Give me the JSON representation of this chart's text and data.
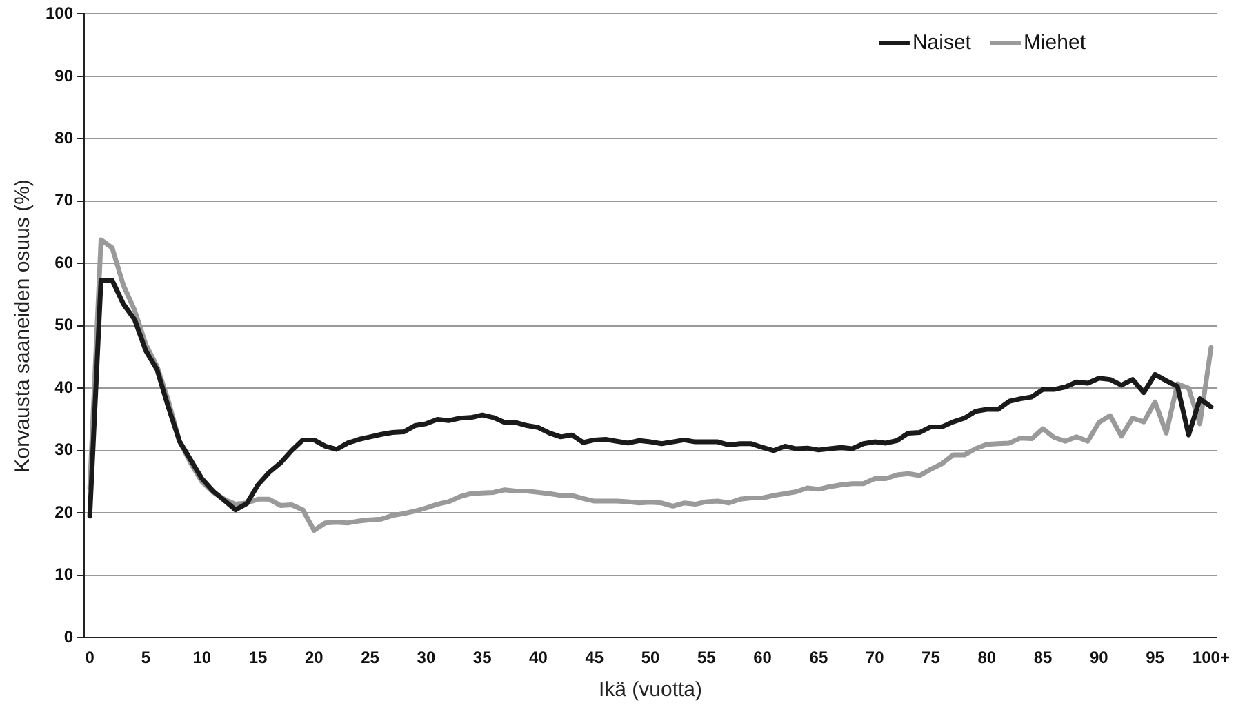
{
  "chart_data": {
    "type": "line",
    "xlabel": "Ikä (vuotta)",
    "ylabel": "Korvausta saaneiden osuus (%)",
    "categories": [
      "0",
      null,
      null,
      null,
      null,
      "5",
      null,
      null,
      null,
      null,
      "10",
      null,
      null,
      null,
      null,
      "15",
      null,
      null,
      null,
      null,
      "20",
      null,
      null,
      null,
      null,
      "25",
      null,
      null,
      null,
      null,
      "30",
      null,
      null,
      null,
      null,
      "35",
      null,
      null,
      null,
      null,
      "40",
      null,
      null,
      null,
      null,
      "45",
      null,
      null,
      null,
      null,
      "50",
      null,
      null,
      null,
      null,
      "55",
      null,
      null,
      null,
      null,
      "60",
      null,
      null,
      null,
      null,
      "65",
      null,
      null,
      null,
      null,
      "70",
      null,
      null,
      null,
      null,
      "75",
      null,
      null,
      null,
      null,
      "80",
      null,
      null,
      null,
      null,
      "85",
      null,
      null,
      null,
      null,
      "90",
      null,
      null,
      null,
      null,
      "95",
      null,
      null,
      null,
      null,
      "100+"
    ],
    "series": [
      {
        "name": "Naiset",
        "color": "#1a1a1a",
        "values": [
          19.5,
          57.3,
          57.3,
          53.5,
          51,
          46,
          43,
          37,
          31.5,
          28.5,
          25.5,
          23.5,
          22,
          20.5,
          21.5,
          24.5,
          26.5,
          28,
          30,
          31.7,
          31.7,
          30.7,
          30.2,
          31.2,
          31.8,
          32.2,
          32.6,
          32.9,
          33,
          34,
          34.3,
          35,
          34.8,
          35.2,
          35.3,
          35.7,
          35.3,
          34.5,
          34.5,
          34,
          33.7,
          32.8,
          32.2,
          32.5,
          31.3,
          31.7,
          31.8,
          31.5,
          31.2,
          31.6,
          31.4,
          31.1,
          31.4,
          31.7,
          31.4,
          31.4,
          31.4,
          30.9,
          31.1,
          31.1,
          30.5,
          30,
          30.7,
          30.3,
          30.4,
          30.1,
          30.3,
          30.5,
          30.3,
          31.1,
          31.4,
          31.2,
          31.6,
          32.8,
          32.9,
          33.8,
          33.8,
          34.6,
          35.2,
          36.3,
          36.6,
          36.6,
          37.9,
          38.3,
          38.6,
          39.8,
          39.8,
          40.2,
          41,
          40.8,
          41.6,
          41.4,
          40.5,
          41.4,
          39.3,
          42.2,
          41.2,
          40.3,
          32.5,
          38.3,
          37
        ]
      },
      {
        "name": "Miehet",
        "color": "#9a9a9a",
        "values": [
          24,
          63.8,
          62.5,
          56.5,
          52.5,
          47,
          43.5,
          38,
          31.5,
          28,
          25,
          23.3,
          22.2,
          21.4,
          21.6,
          22.2,
          22.2,
          21.2,
          21.3,
          20.5,
          17.2,
          18.4,
          18.5,
          18.4,
          18.7,
          18.9,
          19,
          19.6,
          19.9,
          20.3,
          20.8,
          21.4,
          21.8,
          22.6,
          23.1,
          23.2,
          23.3,
          23.7,
          23.5,
          23.5,
          23.3,
          23.1,
          22.8,
          22.8,
          22.3,
          21.9,
          21.9,
          21.9,
          21.8,
          21.6,
          21.7,
          21.6,
          21.1,
          21.6,
          21.4,
          21.8,
          21.9,
          21.6,
          22.2,
          22.4,
          22.4,
          22.8,
          23.1,
          23.4,
          24,
          23.8,
          24.2,
          24.5,
          24.7,
          24.7,
          25.5,
          25.5,
          26.1,
          26.3,
          26,
          27,
          27.9,
          29.3,
          29.3,
          30.3,
          31,
          31.1,
          31.2,
          32,
          31.9,
          33.5,
          32.1,
          31.5,
          32.2,
          31.5,
          34.5,
          35.6,
          32.3,
          35.2,
          34.6,
          37.8,
          32.8,
          40.7,
          40,
          34.3,
          46.5
        ]
      }
    ],
    "ylim": [
      0,
      100
    ],
    "yticks": [
      0,
      10,
      20,
      30,
      40,
      50,
      60,
      70,
      80,
      90,
      100
    ],
    "grid": "y",
    "legend": "top right",
    "marker": "none",
    "line_style": "solid"
  }
}
